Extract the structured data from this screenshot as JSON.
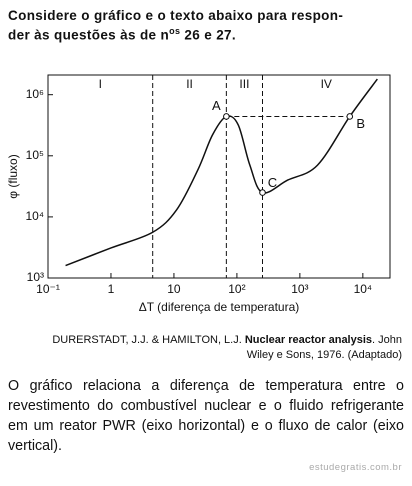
{
  "header": {
    "line1": "Considere o gráfico e o texto abaixo para respon-",
    "line2_before": "der às questões às de n",
    "line2_sup": "os",
    "line2_after": " 26 e 27."
  },
  "chart_data": {
    "type": "line",
    "x_label": "ΔT (diferença de temperatura)",
    "y_label": "φ (fluxo)",
    "x": [
      0.19,
      1,
      4.6,
      11,
      24,
      41,
      68,
      105,
      160,
      255,
      640,
      1900,
      6200,
      17000
    ],
    "values": [
      1600,
      3100,
      5600,
      13000,
      59000,
      220000,
      440000,
      320000,
      71000,
      25000,
      40000,
      70000,
      440000,
      1800000
    ],
    "color": "#111111",
    "log_x": true,
    "log_y": true,
    "xlim": [
      0.1,
      27000
    ],
    "ylim": [
      1000,
      2100000
    ],
    "xticks": [
      {
        "value": 0.1,
        "label": "10⁻¹"
      },
      1,
      10,
      {
        "value": 100,
        "label": "10²"
      },
      {
        "value": 1000,
        "label": "10³"
      },
      {
        "value": 10000,
        "label": "10⁴"
      }
    ],
    "yticks": [
      {
        "value": 1000,
        "label": "10³"
      },
      {
        "value": 10000,
        "label": "10⁴"
      },
      {
        "value": 100000,
        "label": "10⁵"
      },
      {
        "value": 1000000,
        "label": "10⁶"
      }
    ],
    "dividers": [
      4.6,
      68,
      255
    ],
    "regions": [
      "I",
      "II",
      "III",
      "IV"
    ],
    "points": [
      {
        "label": "A",
        "x": 68,
        "y": 440000
      },
      {
        "label": "B",
        "x": 6200,
        "y": 440000
      },
      {
        "label": "C",
        "x": 255,
        "y": 25000
      }
    ]
  },
  "citation": {
    "authors": "DURERSTADT, J.J. & HAMILTON, L.J. ",
    "title": "Nuclear reactor analysis",
    "line1_rest": ". John",
    "line2": "Wiley e Sons, 1976. (Adaptado)"
  },
  "paragraph": {
    "lines": [
      "O gráfico relaciona a diferença de temperatura entre o",
      "revestimento do combustível nuclear e o fluido refrigerante",
      "em um reator PWR (eixo horizontal) e o fluxo de calor (eixo",
      "vertical)."
    ]
  },
  "watermark": "estudegratis.com.br"
}
